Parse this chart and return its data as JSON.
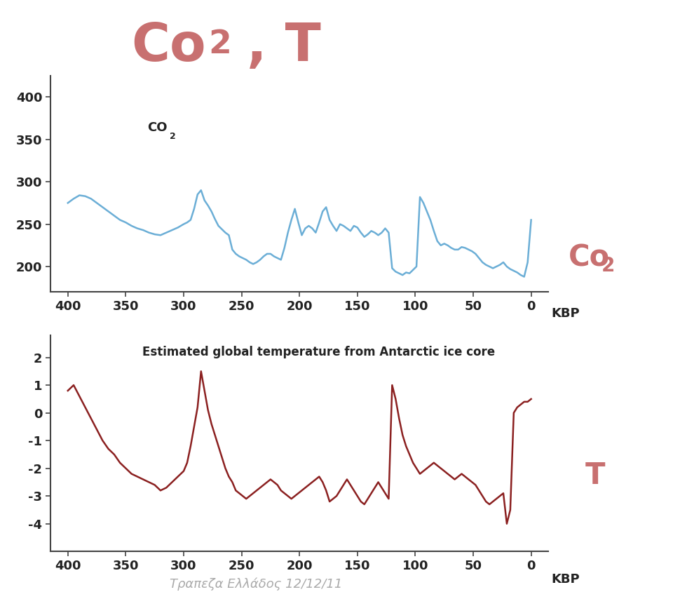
{
  "title_color": "#c87070",
  "right_label_color": "#c87070",
  "co2_color": "#6baed6",
  "temp_color": "#8b2020",
  "subtitle_color": "#aaaaaa",
  "subtitle": "Τραπεζα Ελλάδος 12/12/11",
  "temp_label": "Estimated global temperature from Antarctic ice core",
  "xlabel": "KBP",
  "co2_x": [
    400,
    395,
    390,
    385,
    380,
    375,
    370,
    365,
    360,
    355,
    350,
    345,
    340,
    335,
    330,
    325,
    320,
    315,
    310,
    305,
    300,
    297,
    294,
    291,
    288,
    285,
    282,
    279,
    276,
    273,
    270,
    267,
    264,
    261,
    258,
    255,
    252,
    249,
    246,
    243,
    240,
    237,
    234,
    231,
    228,
    225,
    222,
    219,
    216,
    213,
    210,
    207,
    204,
    201,
    198,
    195,
    192,
    189,
    186,
    183,
    180,
    177,
    174,
    171,
    168,
    165,
    162,
    159,
    156,
    153,
    150,
    147,
    144,
    141,
    138,
    135,
    132,
    129,
    126,
    123,
    120,
    117,
    114,
    111,
    108,
    105,
    102,
    99,
    96,
    93,
    90,
    87,
    84,
    81,
    78,
    75,
    72,
    69,
    66,
    63,
    60,
    57,
    54,
    51,
    48,
    45,
    42,
    39,
    36,
    33,
    30,
    27,
    24,
    21,
    18,
    15,
    12,
    9,
    6,
    3,
    0
  ],
  "co2_y": [
    275,
    280,
    284,
    283,
    280,
    275,
    270,
    265,
    260,
    255,
    252,
    248,
    245,
    243,
    240,
    238,
    237,
    240,
    243,
    246,
    250,
    252,
    255,
    268,
    285,
    290,
    278,
    272,
    265,
    256,
    248,
    244,
    240,
    237,
    220,
    215,
    212,
    210,
    208,
    205,
    203,
    205,
    208,
    212,
    215,
    215,
    212,
    210,
    208,
    222,
    240,
    255,
    268,
    252,
    237,
    245,
    248,
    245,
    240,
    252,
    265,
    270,
    255,
    248,
    242,
    250,
    248,
    245,
    242,
    248,
    246,
    240,
    235,
    238,
    242,
    240,
    237,
    240,
    245,
    240,
    198,
    194,
    192,
    190,
    193,
    192,
    196,
    200,
    282,
    275,
    265,
    255,
    242,
    230,
    225,
    227,
    225,
    222,
    220,
    220,
    223,
    222,
    220,
    218,
    215,
    210,
    205,
    202,
    200,
    198,
    200,
    202,
    205,
    200,
    197,
    195,
    193,
    190,
    188,
    205,
    255
  ],
  "temp_x": [
    400,
    395,
    390,
    385,
    380,
    375,
    370,
    365,
    360,
    355,
    350,
    345,
    340,
    335,
    330,
    325,
    320,
    315,
    310,
    305,
    300,
    297,
    294,
    291,
    288,
    285,
    282,
    279,
    276,
    273,
    270,
    267,
    264,
    261,
    258,
    255,
    252,
    249,
    246,
    243,
    240,
    237,
    234,
    231,
    228,
    225,
    222,
    219,
    216,
    213,
    210,
    207,
    204,
    201,
    198,
    195,
    192,
    189,
    186,
    183,
    180,
    177,
    174,
    171,
    168,
    165,
    162,
    159,
    156,
    153,
    150,
    147,
    144,
    141,
    138,
    135,
    132,
    129,
    126,
    123,
    120,
    117,
    114,
    111,
    108,
    105,
    102,
    99,
    96,
    93,
    90,
    87,
    84,
    81,
    78,
    75,
    72,
    69,
    66,
    63,
    60,
    57,
    54,
    51,
    48,
    45,
    42,
    39,
    36,
    33,
    30,
    27,
    24,
    21,
    18,
    15,
    12,
    9,
    6,
    3,
    0
  ],
  "temp_y": [
    0.8,
    1.0,
    0.6,
    0.2,
    -0.2,
    -0.6,
    -1.0,
    -1.3,
    -1.5,
    -1.8,
    -2.0,
    -2.2,
    -2.3,
    -2.4,
    -2.5,
    -2.6,
    -2.8,
    -2.7,
    -2.5,
    -2.3,
    -2.1,
    -1.8,
    -1.2,
    -0.5,
    0.2,
    1.5,
    0.8,
    0.1,
    -0.4,
    -0.8,
    -1.2,
    -1.6,
    -2.0,
    -2.3,
    -2.5,
    -2.8,
    -2.9,
    -3.0,
    -3.1,
    -3.0,
    -2.9,
    -2.8,
    -2.7,
    -2.6,
    -2.5,
    -2.4,
    -2.5,
    -2.6,
    -2.8,
    -2.9,
    -3.0,
    -3.1,
    -3.0,
    -2.9,
    -2.8,
    -2.7,
    -2.6,
    -2.5,
    -2.4,
    -2.3,
    -2.5,
    -2.8,
    -3.2,
    -3.1,
    -3.0,
    -2.8,
    -2.6,
    -2.4,
    -2.6,
    -2.8,
    -3.0,
    -3.2,
    -3.3,
    -3.1,
    -2.9,
    -2.7,
    -2.5,
    -2.7,
    -2.9,
    -3.1,
    1.0,
    0.5,
    -0.2,
    -0.8,
    -1.2,
    -1.5,
    -1.8,
    -2.0,
    -2.2,
    -2.1,
    -2.0,
    -1.9,
    -1.8,
    -1.9,
    -2.0,
    -2.1,
    -2.2,
    -2.3,
    -2.4,
    -2.3,
    -2.2,
    -2.3,
    -2.4,
    -2.5,
    -2.6,
    -2.8,
    -3.0,
    -3.2,
    -3.3,
    -3.2,
    -3.1,
    -3.0,
    -2.9,
    -4.0,
    -3.5,
    0.0,
    0.2,
    0.3,
    0.4,
    0.4,
    0.5
  ],
  "co2_ylim": [
    170,
    425
  ],
  "co2_yticks": [
    200,
    250,
    300,
    350,
    400
  ],
  "temp_ylim": [
    -5.0,
    2.8
  ],
  "temp_yticks": [
    -4,
    -3,
    -2,
    -1,
    0,
    1,
    2
  ],
  "xticks": [
    400,
    350,
    300,
    250,
    200,
    150,
    100,
    50,
    0
  ],
  "line_width": 1.8
}
